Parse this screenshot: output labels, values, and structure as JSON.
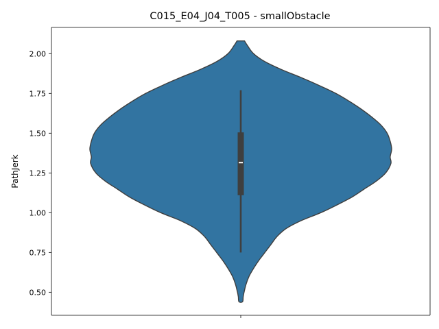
{
  "chart_data": {
    "type": "violin",
    "title": "C015_E04_J04_T005 - smallObstacle",
    "xlabel": "",
    "ylabel": "PathJerk",
    "ylim": [
      0.355,
      2.165
    ],
    "yticks": [
      0.5,
      0.75,
      1.0,
      1.25,
      1.5,
      1.75,
      2.0
    ],
    "ytick_labels": [
      "0.50",
      "0.75",
      "1.00",
      "1.25",
      "1.50",
      "1.75",
      "2.00"
    ],
    "grid": false,
    "legend": "none",
    "violin": {
      "density_range": [
        0.44,
        2.08
      ],
      "profile": [
        {
          "y": 2.08,
          "w": 0.025
        },
        {
          "y": 2.05,
          "w": 0.045
        },
        {
          "y": 2.0,
          "w": 0.085
        },
        {
          "y": 1.95,
          "w": 0.16
        },
        {
          "y": 1.9,
          "w": 0.27
        },
        {
          "y": 1.85,
          "w": 0.4
        },
        {
          "y": 1.8,
          "w": 0.52
        },
        {
          "y": 1.75,
          "w": 0.63
        },
        {
          "y": 1.7,
          "w": 0.72
        },
        {
          "y": 1.65,
          "w": 0.8
        },
        {
          "y": 1.6,
          "w": 0.87
        },
        {
          "y": 1.55,
          "w": 0.93
        },
        {
          "y": 1.5,
          "w": 0.97
        },
        {
          "y": 1.45,
          "w": 0.99
        },
        {
          "y": 1.4,
          "w": 1.0
        },
        {
          "y": 1.35,
          "w": 0.99
        },
        {
          "y": 1.31,
          "w": 0.995
        },
        {
          "y": 1.25,
          "w": 0.96
        },
        {
          "y": 1.2,
          "w": 0.9
        },
        {
          "y": 1.15,
          "w": 0.82
        },
        {
          "y": 1.1,
          "w": 0.74
        },
        {
          "y": 1.05,
          "w": 0.64
        },
        {
          "y": 1.0,
          "w": 0.53
        },
        {
          "y": 0.95,
          "w": 0.4
        },
        {
          "y": 0.9,
          "w": 0.3
        },
        {
          "y": 0.85,
          "w": 0.24
        },
        {
          "y": 0.8,
          "w": 0.2
        },
        {
          "y": 0.75,
          "w": 0.16
        },
        {
          "y": 0.7,
          "w": 0.12
        },
        {
          "y": 0.65,
          "w": 0.085
        },
        {
          "y": 0.6,
          "w": 0.055
        },
        {
          "y": 0.55,
          "w": 0.035
        },
        {
          "y": 0.5,
          "w": 0.022
        },
        {
          "y": 0.47,
          "w": 0.016
        },
        {
          "y": 0.44,
          "w": 0.012
        }
      ],
      "whisker_low": 0.75,
      "q1": 1.11,
      "median": 1.315,
      "q3": 1.505,
      "whisker_high": 1.77
    },
    "colors": {
      "fill": "#3274a1",
      "edge": "#3f3f3f",
      "box": "#3f3f3f",
      "median": "#ffffff"
    }
  }
}
